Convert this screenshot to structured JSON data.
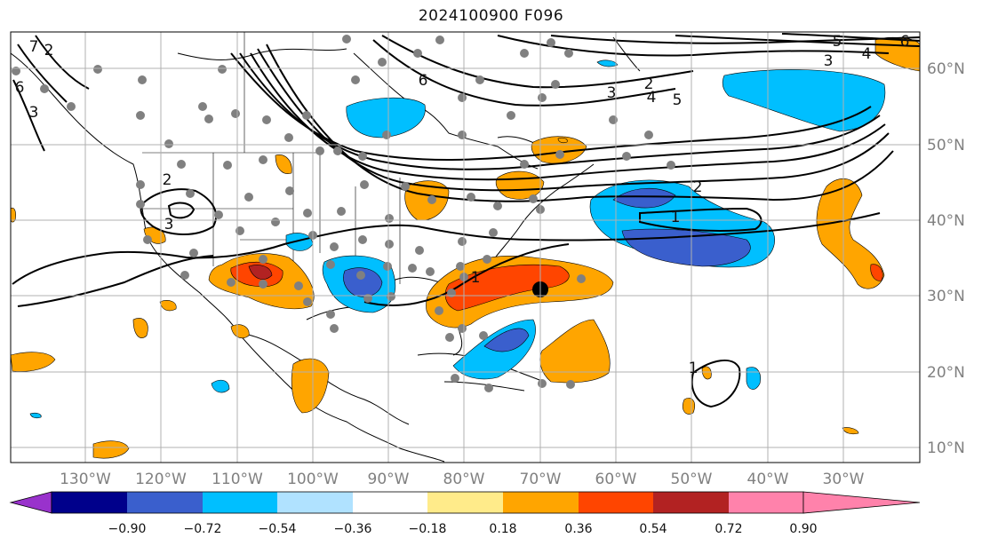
{
  "title": "2024100900 F096",
  "map": {
    "lon_labels": [
      "130°W",
      "120°W",
      "110°W",
      "100°W",
      "90°W",
      "80°W",
      "70°W",
      "60°W",
      "50°W",
      "40°W",
      "30°W"
    ],
    "lat_labels": [
      "60°N",
      "50°N",
      "40°N",
      "30°N",
      "20°N",
      "10°N"
    ],
    "contour_labels": [
      "5",
      "4",
      "6",
      "3",
      "2",
      "4",
      "5",
      "3",
      "6",
      "2",
      "7",
      "3",
      "6",
      "2",
      "3",
      "1",
      "1",
      "1",
      "2"
    ]
  },
  "colorbar": {
    "ticks": [
      "−0.90",
      "−0.72",
      "−0.54",
      "−0.36",
      "−0.18",
      "0.18",
      "0.36",
      "0.54",
      "0.72",
      "0.90"
    ],
    "colors": [
      "#9932cc",
      "#00008b",
      "#3a5fcd",
      "#00bfff",
      "#b0e2ff",
      "#ffffff",
      "#ffeb8a",
      "#ffa500",
      "#ff4500",
      "#b22222",
      "#ff82ab"
    ]
  }
}
